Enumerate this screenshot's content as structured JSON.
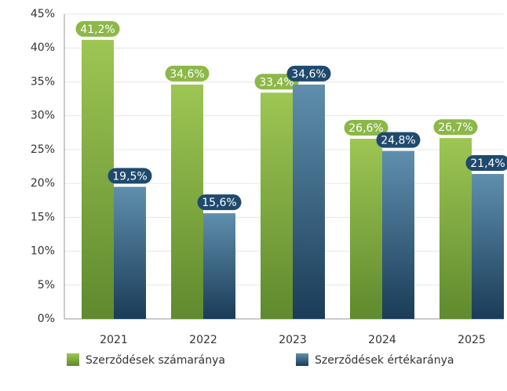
{
  "chart_data": {
    "type": "bar",
    "categories": [
      "2021",
      "2022",
      "2023",
      "2024",
      "2025"
    ],
    "series": [
      {
        "name": "Szerződések számaránya",
        "color": "#8cb848",
        "values": [
          41.2,
          34.6,
          33.4,
          26.6,
          26.7
        ],
        "value_labels": [
          "41,2%",
          "34,6%",
          "33,4%",
          "26,6%",
          "26,7%"
        ]
      },
      {
        "name": "Szerződések értékaránya",
        "color": "#2e5d7e",
        "values": [
          19.5,
          15.6,
          34.6,
          24.8,
          21.4
        ],
        "value_labels": [
          "19,5%",
          "15,6%",
          "34,6%",
          "24,8%",
          "21,4%"
        ]
      }
    ],
    "ylim": [
      0,
      45
    ],
    "yticks": [
      {
        "value": 0,
        "label": "0%"
      },
      {
        "value": 5,
        "label": "5%"
      },
      {
        "value": 10,
        "label": "10%"
      },
      {
        "value": 15,
        "label": "15%"
      },
      {
        "value": 20,
        "label": "20%"
      },
      {
        "value": 25,
        "label": "25%"
      },
      {
        "value": 30,
        "label": "30%"
      },
      {
        "value": 35,
        "label": "35%"
      },
      {
        "value": 40,
        "label": "40%"
      },
      {
        "value": 45,
        "label": "45%"
      }
    ],
    "grid": true
  }
}
